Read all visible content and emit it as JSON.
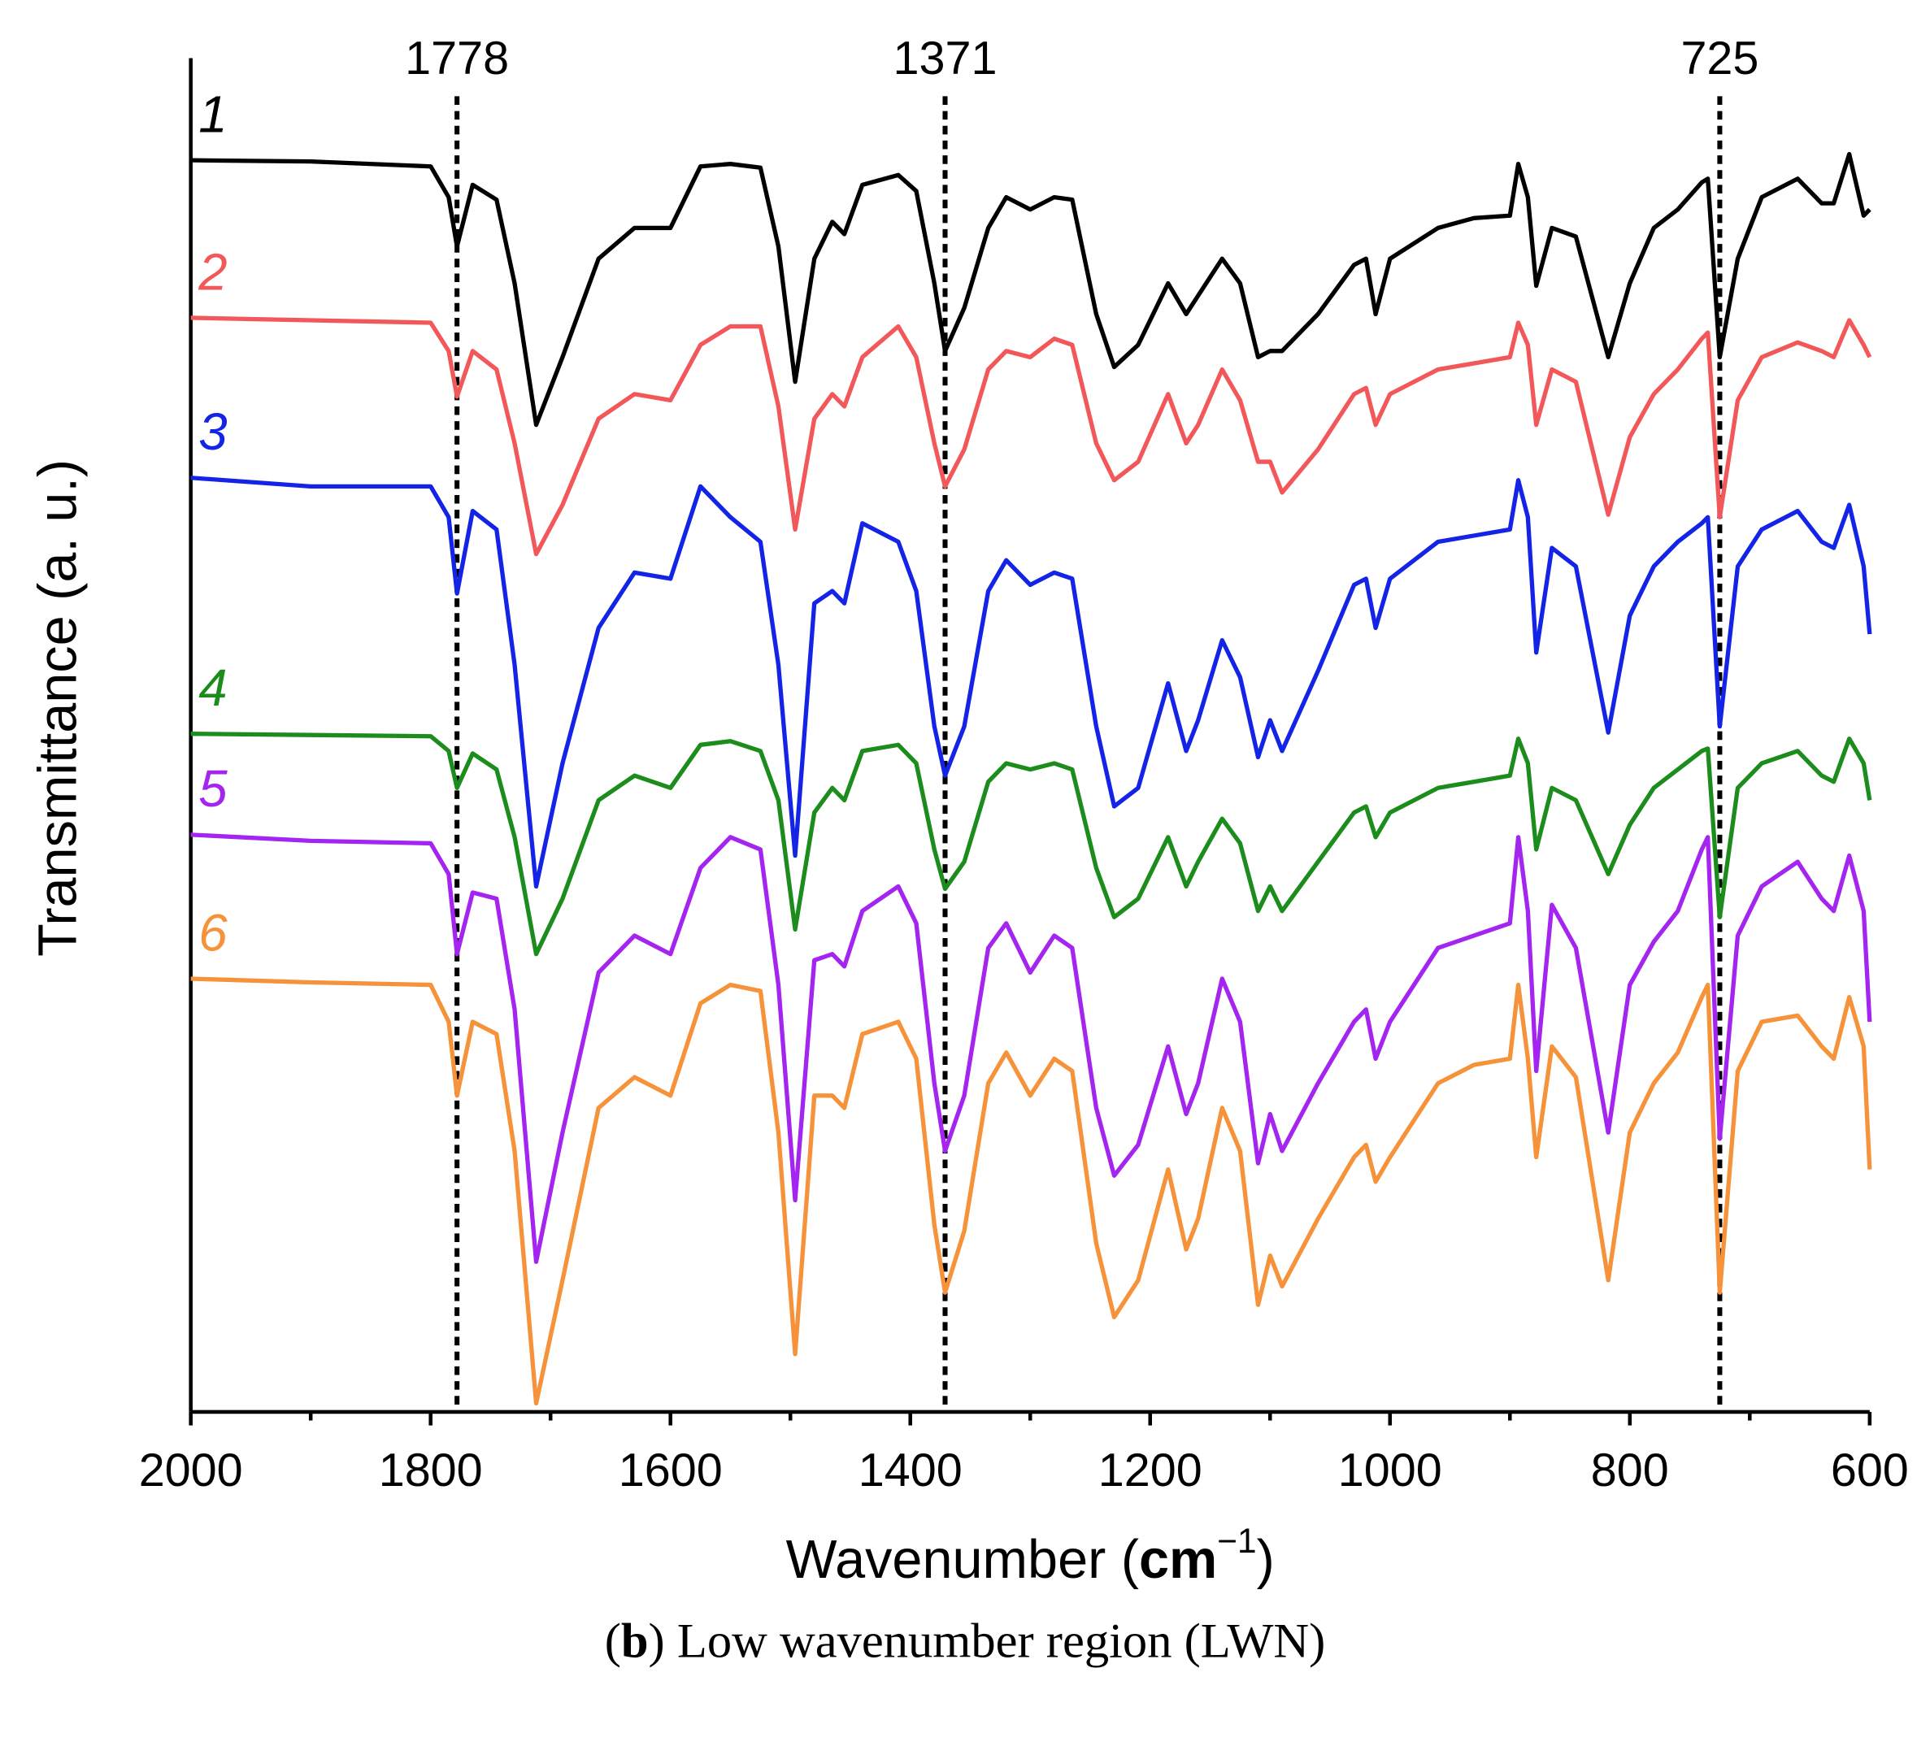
{
  "chart_data": {
    "type": "line",
    "xlabel": {
      "text": "Wavenumber (",
      "unit": "cm",
      "exponent": "−1",
      "close": ")"
    },
    "ylabel": "Transmittance (a. u.)",
    "caption": {
      "open": "(",
      "panel": "b",
      "text": ") Low wavenumber region (LWN)"
    },
    "xlim": [
      2000,
      600
    ],
    "xticks": [
      2000,
      1800,
      1600,
      1400,
      1200,
      1000,
      800,
      600
    ],
    "xminorticks": [
      1900,
      1700,
      1500,
      1300,
      1100,
      900,
      700
    ],
    "ylim": [
      0,
      1100
    ],
    "vlines": [
      1778,
      1371,
      725
    ],
    "x": [
      2000,
      1900,
      1800,
      1785,
      1778,
      1765,
      1745,
      1730,
      1712,
      1690,
      1660,
      1630,
      1600,
      1575,
      1550,
      1525,
      1510,
      1496,
      1480,
      1465,
      1455,
      1440,
      1410,
      1395,
      1380,
      1371,
      1355,
      1335,
      1320,
      1300,
      1280,
      1265,
      1245,
      1230,
      1210,
      1185,
      1170,
      1160,
      1140,
      1125,
      1110,
      1100,
      1090,
      1060,
      1030,
      1020,
      1012,
      1000,
      960,
      930,
      900,
      893,
      885,
      878,
      865,
      845,
      818,
      800,
      780,
      760,
      740,
      735,
      725,
      710,
      690,
      660,
      640,
      630,
      617,
      605,
      600
    ],
    "series": [
      {
        "name": "1",
        "color": "#000000",
        "values": [
          1017,
          1016,
          1012,
          987,
          947,
          997,
          985,
          917,
          802,
          857,
          937,
          962,
          962,
          1012,
          1014,
          1011,
          947,
          837,
          937,
          967,
          957,
          997,
          1005,
          992,
          917,
          862,
          897,
          962,
          987,
          977,
          987,
          985,
          892,
          849,
          867,
          917,
          892,
          907,
          937,
          917,
          857,
          862,
          862,
          892,
          932,
          937,
          892,
          937,
          962,
          970,
          972,
          1014,
          987,
          915,
          962,
          955,
          857,
          917,
          962,
          977,
          999,
          1002,
          857,
          937,
          987,
          1002,
          982,
          982,
          1022,
          972,
          977
        ]
      },
      {
        "name": "2",
        "color": "#f2575a",
        "values": [
          889,
          887,
          885,
          862,
          825,
          862,
          847,
          787,
          697,
          737,
          807,
          827,
          822,
          867,
          882,
          882,
          817,
          717,
          807,
          827,
          817,
          857,
          882,
          857,
          787,
          752,
          782,
          847,
          862,
          857,
          872,
          867,
          787,
          757,
          772,
          827,
          787,
          802,
          847,
          822,
          772,
          772,
          747,
          782,
          827,
          832,
          802,
          827,
          847,
          852,
          857,
          885,
          867,
          802,
          847,
          837,
          729,
          792,
          827,
          847,
          872,
          877,
          727,
          822,
          857,
          869,
          862,
          857,
          887,
          867,
          857
        ]
      },
      {
        "name": "3",
        "color": "#1424e6",
        "values": [
          759,
          752,
          752,
          727,
          665,
          732,
          717,
          607,
          427,
          527,
          637,
          682,
          677,
          752,
          727,
          707,
          607,
          452,
          657,
          667,
          657,
          722,
          707,
          667,
          557,
          517,
          557,
          667,
          692,
          672,
          682,
          677,
          557,
          492,
          507,
          592,
          537,
          562,
          627,
          597,
          532,
          562,
          537,
          602,
          672,
          677,
          637,
          677,
          707,
          712,
          717,
          757,
          727,
          617,
          702,
          687,
          552,
          647,
          687,
          707,
          722,
          727,
          557,
          687,
          717,
          732,
          707,
          702,
          737,
          687,
          632
        ]
      },
      {
        "name": "4",
        "color": "#1c8c1c",
        "values": [
          551,
          550,
          549,
          537,
          507,
          535,
          522,
          467,
          372,
          417,
          497,
          517,
          507,
          542,
          545,
          537,
          497,
          392,
          487,
          507,
          497,
          537,
          542,
          527,
          457,
          425,
          447,
          512,
          527,
          522,
          527,
          522,
          442,
          402,
          417,
          467,
          427,
          447,
          482,
          462,
          407,
          427,
          407,
          447,
          487,
          492,
          467,
          487,
          507,
          512,
          517,
          547,
          527,
          457,
          507,
          497,
          437,
          477,
          507,
          522,
          537,
          539,
          402,
          507,
          527,
          537,
          517,
          512,
          547,
          527,
          497
        ]
      },
      {
        "name": "5",
        "color": "#a424f0",
        "values": [
          469,
          464,
          462,
          437,
          372,
          422,
          417,
          327,
          122,
          227,
          357,
          387,
          372,
          442,
          467,
          457,
          347,
          172,
          367,
          372,
          362,
          407,
          427,
          397,
          267,
          212,
          257,
          377,
          397,
          357,
          387,
          377,
          247,
          192,
          217,
          297,
          242,
          267,
          352,
          317,
          202,
          242,
          212,
          267,
          317,
          327,
          287,
          317,
          377,
          387,
          397,
          467,
          407,
          277,
          412,
          377,
          227,
          347,
          382,
          407,
          457,
          467,
          222,
          387,
          427,
          447,
          417,
          407,
          452,
          407,
          317
        ]
      },
      {
        "name": "6",
        "color": "#f5923a",
        "values": [
          352,
          349,
          347,
          317,
          257,
          317,
          307,
          212,
          7,
          107,
          247,
          272,
          257,
          332,
          347,
          342,
          227,
          47,
          257,
          257,
          247,
          307,
          317,
          287,
          152,
          97,
          147,
          267,
          292,
          257,
          287,
          277,
          137,
          77,
          107,
          197,
          132,
          157,
          247,
          212,
          87,
          127,
          102,
          157,
          207,
          217,
          187,
          207,
          267,
          282,
          287,
          347,
          287,
          207,
          297,
          272,
          107,
          227,
          267,
          292,
          337,
          347,
          97,
          277,
          317,
          322,
          297,
          287,
          337,
          297,
          197
        ]
      }
    ]
  }
}
